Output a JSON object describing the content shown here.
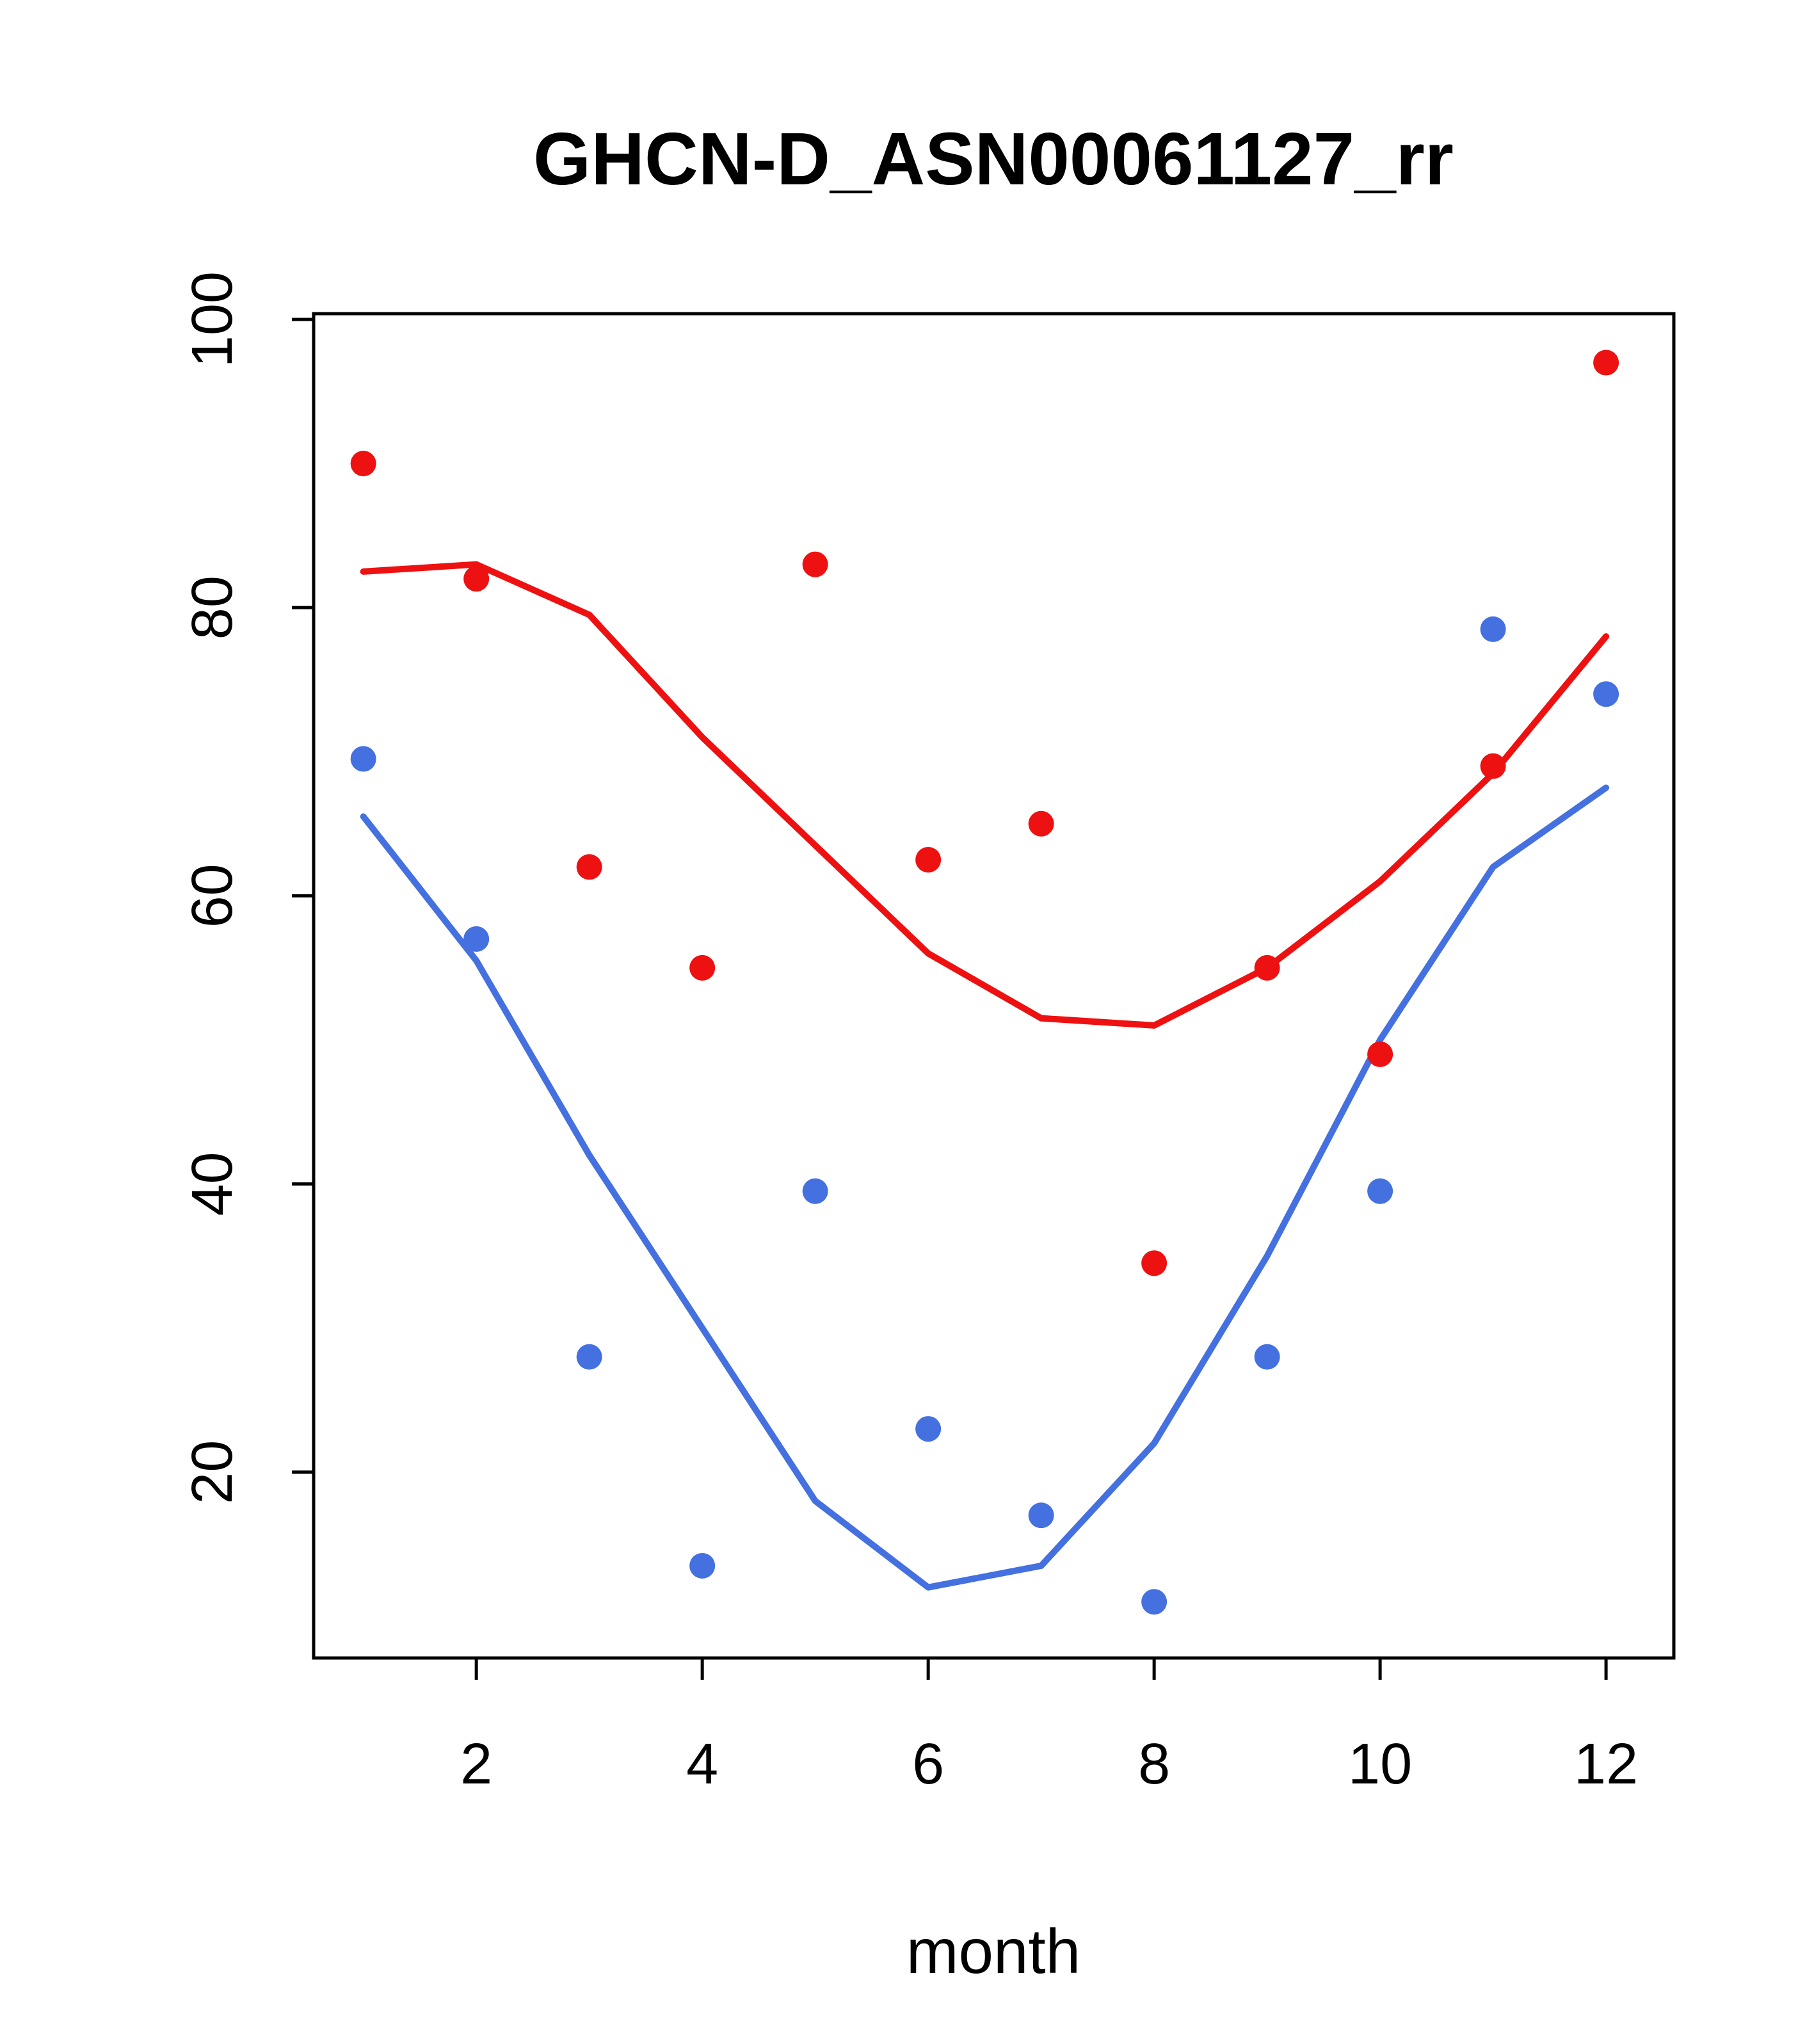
{
  "chart_data": {
    "type": "scatter",
    "title": "GHCN-D_ASN00061127_rr",
    "xlabel": "month",
    "ylabel": "",
    "x": [
      1,
      2,
      3,
      4,
      5,
      6,
      7,
      8,
      9,
      10,
      11,
      12
    ],
    "series": [
      {
        "name": "red points",
        "kind": "scatter",
        "color": "#EE1111",
        "values": [
          90,
          82,
          62,
          55,
          83,
          62.5,
          65,
          34.5,
          55,
          49,
          69,
          97
        ]
      },
      {
        "name": "blue points",
        "kind": "scatter",
        "color": "#4470E0",
        "values": [
          69.5,
          57,
          28,
          13.5,
          39.5,
          23,
          17,
          11,
          28,
          39.5,
          78.5,
          74
        ]
      },
      {
        "name": "red smooth line",
        "kind": "line",
        "color": "#EE1111",
        "values": [
          82.5,
          83,
          79.5,
          71,
          63.5,
          56,
          51.5,
          51,
          55,
          61,
          68.5,
          78
        ]
      },
      {
        "name": "blue smooth line",
        "kind": "line",
        "color": "#4470E0",
        "values": [
          65.5,
          55.5,
          42,
          30,
          18,
          12,
          13.5,
          22,
          35,
          50,
          62,
          67.5
        ]
      }
    ],
    "x_ticks": [
      2,
      4,
      6,
      8,
      10,
      12
    ],
    "y_ticks": [
      20,
      40,
      60,
      80,
      100
    ],
    "xlim": [
      0.56,
      12.6
    ],
    "ylim": [
      7.1,
      100.4
    ],
    "grid": false,
    "legend": "none",
    "colors": {
      "red_series": "#EE1111",
      "blue_series": "#4470E0",
      "axis": "#000000",
      "background": "#FFFFFF"
    }
  }
}
